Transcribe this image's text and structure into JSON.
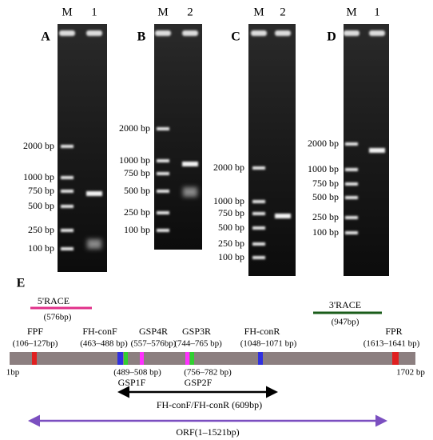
{
  "panels": [
    {
      "letter": "A",
      "lanes": [
        "M",
        "1"
      ],
      "markers": [
        "2000 bp",
        "1000 bp",
        "750 bp",
        "500 bp",
        "250 bp",
        "100 bp"
      ]
    },
    {
      "letter": "B",
      "lanes": [
        "M",
        "2"
      ],
      "markers": [
        "2000 bp",
        "1000 bp",
        "750 bp",
        "500 bp",
        "250 bp",
        "100 bp"
      ]
    },
    {
      "letter": "C",
      "lanes": [
        "M",
        "2"
      ],
      "markers": [
        "2000 bp",
        "1000 bp",
        "750 bp",
        "500 bp",
        "250 bp",
        "100 bp"
      ]
    },
    {
      "letter": "D",
      "lanes": [
        "M",
        "1"
      ],
      "markers": [
        "2000 bp",
        "1000 bp",
        "750 bp",
        "500 bp",
        "250 bp",
        "100 bp"
      ]
    }
  ],
  "diagram": {
    "letter": "E",
    "race5": {
      "name": "5'RACE",
      "size": "(576bp)"
    },
    "race3": {
      "name": "3'RACE",
      "size": "(947bp)"
    },
    "start": "1bp",
    "end": "1702 bp",
    "primers_top": [
      {
        "name": "FPF",
        "range": "(106–127bp)"
      },
      {
        "name": "FH-conF",
        "range": "(463–488 bp)"
      },
      {
        "name": "GSP4R",
        "range": "(557–576bp)"
      },
      {
        "name": "GSP3R",
        "range": "(744–765 bp)"
      },
      {
        "name": "FH-conR",
        "range": "(1048–1071 bp)"
      },
      {
        "name": "FPR",
        "range": "(1613–1641 bp)"
      }
    ],
    "primers_bottom": [
      {
        "range": "(489–508 bp)",
        "name": "GSP1F"
      },
      {
        "range": "(756–782 bp)",
        "name": "GSP2F"
      }
    ],
    "product": "FH-conF/FH-conR (609bp)",
    "orf": "ORF(1–1521bp)"
  }
}
